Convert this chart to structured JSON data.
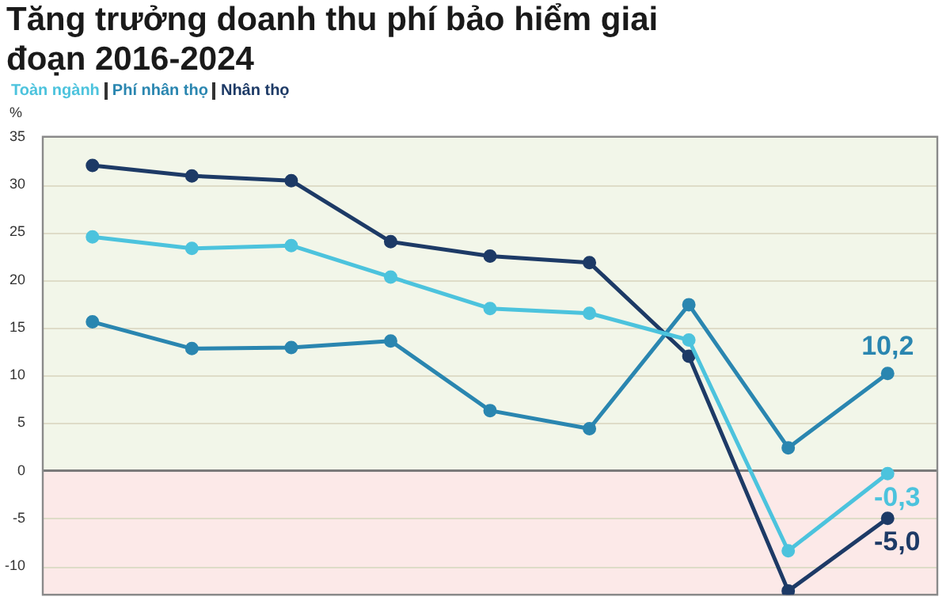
{
  "chart_data": {
    "type": "line",
    "title": "Tăng trưởng doanh thu phí bảo hiểm giai đoạn 2016-2024",
    "ylabel": "%",
    "categories": [
      null,
      null,
      null,
      null,
      null,
      null,
      null,
      null,
      null
    ],
    "series": [
      {
        "name": "Toàn ngành",
        "color": "#4cc3dd",
        "values": [
          24.5,
          23.3,
          23.6,
          20.3,
          17.0,
          16.5,
          13.7,
          -8.4,
          -0.3
        ],
        "value_labels": [
          null,
          null,
          null,
          null,
          null,
          null,
          null,
          null,
          "-0,3"
        ]
      },
      {
        "name": "Phí nhân thọ",
        "color": "#2a86b0",
        "values": [
          15.6,
          12.8,
          12.9,
          13.6,
          6.3,
          4.4,
          17.4,
          2.4,
          10.2
        ],
        "value_labels": [
          null,
          null,
          null,
          null,
          null,
          null,
          null,
          null,
          "10,2"
        ]
      },
      {
        "name": "Nhân thọ",
        "color": "#1d3a66",
        "values": [
          32.0,
          30.9,
          30.4,
          24.0,
          22.5,
          21.8,
          12.0,
          -12.6,
          -5.0
        ],
        "value_labels": [
          null,
          null,
          null,
          null,
          null,
          null,
          null,
          null,
          "-5,0"
        ]
      }
    ],
    "ylim": [
      -13,
      35
    ],
    "yticks": [
      -10,
      -5,
      0,
      5,
      10,
      15,
      20,
      25,
      30,
      35
    ],
    "bands": [
      {
        "axis": "y",
        "from": 0,
        "to": 35,
        "color": "#f2f6e9"
      },
      {
        "axis": "y",
        "from": -13,
        "to": 0,
        "color": "#fce9e8"
      }
    ],
    "ref_lines": [
      {
        "axis": "y",
        "value": 0,
        "color": "#7a7a7a"
      }
    ],
    "grid": "y",
    "legend": "top left",
    "marker": "circle",
    "line_style": "solid"
  }
}
